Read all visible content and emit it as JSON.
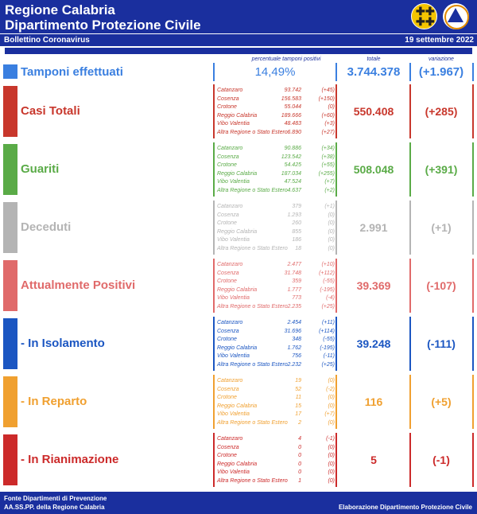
{
  "header": {
    "title_line1": "Regione Calabria",
    "title_line2": "Dipartimento Protezione Civile",
    "bulletin": "Bollettino Coronavirus",
    "date": "19 settembre 2022"
  },
  "columns": {
    "percent": "percentuale tamponi positivi",
    "total": "totale",
    "variation": "variazione"
  },
  "tamponi": {
    "label": "Tamponi effettuati",
    "percent": "14,49%",
    "total": "3.744.378",
    "variation": "(+1.967)",
    "color": "#3a7fe0"
  },
  "sections": [
    {
      "label": "Casi Totali",
      "color": "#c8372c",
      "total": "550.408",
      "variation": "(+285)",
      "rows": [
        {
          "name": "Catanzaro",
          "value": "93.742",
          "delta": "(+45)"
        },
        {
          "name": "Cosenza",
          "value": "156.583",
          "delta": "(+150)"
        },
        {
          "name": "Crotone",
          "value": "55.044",
          "delta": "(0)"
        },
        {
          "name": "Reggio Calabria",
          "value": "189.666",
          "delta": "(+60)"
        },
        {
          "name": "Vibo Valentia",
          "value": "48.483",
          "delta": "(+3)"
        },
        {
          "name": "Altra Regione o Stato Estero",
          "value": "6.890",
          "delta": "(+27)"
        }
      ]
    },
    {
      "label": "Guariti",
      "color": "#5aab47",
      "total": "508.048",
      "variation": "(+391)",
      "rows": [
        {
          "name": "Catanzaro",
          "value": "90.886",
          "delta": "(+34)"
        },
        {
          "name": "Cosenza",
          "value": "123.542",
          "delta": "(+38)"
        },
        {
          "name": "Crotone",
          "value": "54.425",
          "delta": "(+55)"
        },
        {
          "name": "Reggio Calabria",
          "value": "187.034",
          "delta": "(+255)"
        },
        {
          "name": "Vibo Valentia",
          "value": "47.524",
          "delta": "(+7)"
        },
        {
          "name": "Altra Regione o Stato Estero",
          "value": "4.637",
          "delta": "(+2)"
        }
      ]
    },
    {
      "label": "Deceduti",
      "color": "#b4b4b4",
      "total": "2.991",
      "variation": "(+1)",
      "rows": [
        {
          "name": "Catanzaro",
          "value": "379",
          "delta": "(+1)"
        },
        {
          "name": "Cosenza",
          "value": "1.293",
          "delta": "(0)"
        },
        {
          "name": "Crotone",
          "value": "260",
          "delta": "(0)"
        },
        {
          "name": "Reggio Calabria",
          "value": "855",
          "delta": "(0)"
        },
        {
          "name": "Vibo Valentia",
          "value": "186",
          "delta": "(0)"
        },
        {
          "name": "Altra Regione o Stato Estero",
          "value": "18",
          "delta": "(0)"
        }
      ]
    },
    {
      "label": "Attualmente Positivi",
      "color": "#e06a6a",
      "total": "39.369",
      "variation": "(-107)",
      "rows": [
        {
          "name": "Catanzaro",
          "value": "2.477",
          "delta": "(+10)"
        },
        {
          "name": "Cosenza",
          "value": "31.748",
          "delta": "(+112)"
        },
        {
          "name": "Crotone",
          "value": "359",
          "delta": "(-55)"
        },
        {
          "name": "Reggio Calabria",
          "value": "1.777",
          "delta": "(-195)"
        },
        {
          "name": "Vibo Valentia",
          "value": "773",
          "delta": "(-4)"
        },
        {
          "name": "Altra Regione o Stato Estero",
          "value": "2.235",
          "delta": "(+25)"
        }
      ]
    },
    {
      "label": "- In Isolamento",
      "color": "#1b56c2",
      "total": "39.248",
      "variation": "(-111)",
      "rows": [
        {
          "name": "Catanzaro",
          "value": "2.454",
          "delta": "(+11)"
        },
        {
          "name": "Cosenza",
          "value": "31.696",
          "delta": "(+114)"
        },
        {
          "name": "Crotone",
          "value": "348",
          "delta": "(-55)"
        },
        {
          "name": "Reggio Calabria",
          "value": "1.762",
          "delta": "(-195)"
        },
        {
          "name": "Vibo Valentia",
          "value": "756",
          "delta": "(-11)"
        },
        {
          "name": "Altra Regione o Stato Estero",
          "value": "2.232",
          "delta": "(+25)"
        }
      ]
    },
    {
      "label": "- In Reparto",
      "color": "#f0a030",
      "total": "116",
      "variation": "(+5)",
      "rows": [
        {
          "name": "Catanzaro",
          "value": "19",
          "delta": "(0)"
        },
        {
          "name": "Cosenza",
          "value": "52",
          "delta": "(-2)"
        },
        {
          "name": "Crotone",
          "value": "11",
          "delta": "(0)"
        },
        {
          "name": "Reggio Calabria",
          "value": "15",
          "delta": "(0)"
        },
        {
          "name": "Vibo Valentia",
          "value": "17",
          "delta": "(+7)"
        },
        {
          "name": "Altra Regione o Stato Estero",
          "value": "2",
          "delta": "(0)"
        }
      ]
    },
    {
      "label": "- In Rianimazione",
      "color": "#cc2a2a",
      "total": "5",
      "variation": "(-1)",
      "rows": [
        {
          "name": "Catanzaro",
          "value": "4",
          "delta": "(-1)"
        },
        {
          "name": "Cosenza",
          "value": "0",
          "delta": "(0)"
        },
        {
          "name": "Crotone",
          "value": "0",
          "delta": "(0)"
        },
        {
          "name": "Reggio Calabria",
          "value": "0",
          "delta": "(0)"
        },
        {
          "name": "Vibo Valentia",
          "value": "0",
          "delta": "(0)"
        },
        {
          "name": "Altra Regione o Stato Estero",
          "value": "1",
          "delta": "(0)"
        }
      ]
    }
  ],
  "footer": {
    "source_line1": "Fonte Dipartimenti di Prevenzione",
    "source_line2": "AA.SS.PP.  della Regione Calabria",
    "credit": "Elaborazione Dipartimento Protezione Civile"
  },
  "icons": {
    "logo_left": "regione-calabria-logo-icon",
    "logo_right": "protezione-civile-logo-icon"
  }
}
